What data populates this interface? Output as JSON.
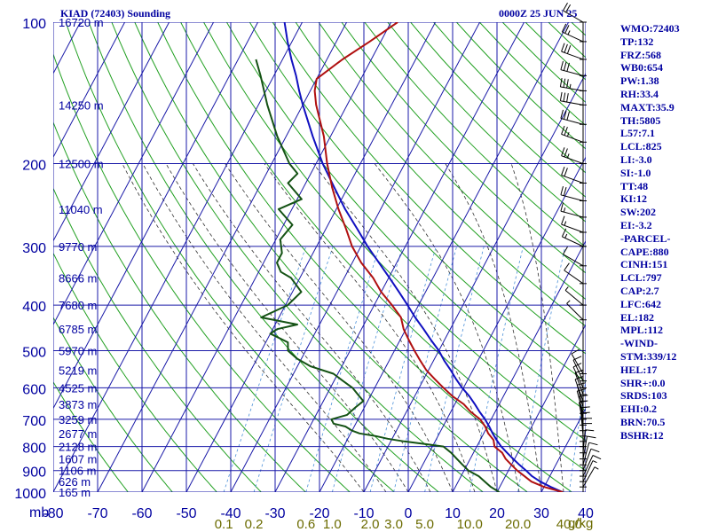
{
  "header": {
    "station": "KIAD (72403) Sounding",
    "datetime": "0000Z 25 JUN 25"
  },
  "indices": [
    "WMO:72403",
    "TP:132",
    "FRZ:568",
    "WB0:654",
    "PW:1.38",
    "RH:33.4",
    "MAXT:35.9",
    "TH:5805",
    "L57:7.1",
    "LCL:825",
    "LI:-3.0",
    "SI:-1.0",
    "TT:48",
    "KI:12",
    "SW:202",
    "EI:-3.2",
    "-PARCEL-",
    "CAPE:880",
    "CINH:151",
    "LCL:797",
    "CAP:2.7",
    "LFC:642",
    "EL:182",
    "MPL:112",
    "-WIND-",
    "STM:339/12",
    "HEL:17",
    "SHR+:0.0",
    "SRDS:103",
    "EHI:0.2",
    "BRN:70.5",
    "BSHR:12"
  ],
  "axis_caption": "mb",
  "mixing_unit": "g/kg",
  "colors": {
    "isobar": "#1a1aa8",
    "isotherm": "#1a1aa8",
    "dry_adiabat": "#22a022",
    "moist_adiabat": "#303030",
    "mixing_ratio": "#4a90d9",
    "temperature": "#b01010",
    "dewpoint": "#145214",
    "parcel": "#1010c0",
    "label": "#0000a0",
    "mixing_label": "#6b6b00"
  },
  "chart_data": {
    "type": "skew-t",
    "pressure_levels": [
      100,
      200,
      300,
      400,
      500,
      600,
      700,
      800,
      900,
      1000
    ],
    "height_labels": [
      {
        "p": 100,
        "label": "16720 m"
      },
      {
        "p": 150,
        "label": "14250 m"
      },
      {
        "p": 200,
        "label": "12500 m"
      },
      {
        "p": 250,
        "label": "11040 m"
      },
      {
        "p": 300,
        "label": "9770 m"
      },
      {
        "p": 350,
        "label": "8666 m"
      },
      {
        "p": 400,
        "label": "7680 m"
      },
      {
        "p": 450,
        "label": "6785 m"
      },
      {
        "p": 500,
        "label": "5970 m"
      },
      {
        "p": 550,
        "label": "5219 m"
      },
      {
        "p": 600,
        "label": "4525 m"
      },
      {
        "p": 650,
        "label": "3873 m"
      },
      {
        "p": 700,
        "label": "3259 m"
      },
      {
        "p": 750,
        "label": "2677 m"
      },
      {
        "p": 800,
        "label": "2128 m"
      },
      {
        "p": 850,
        "label": "1607 m"
      },
      {
        "p": 900,
        "label": "1106 m"
      },
      {
        "p": 950,
        "label": "626 m"
      },
      {
        "p": 1000,
        "label": "165 m"
      }
    ],
    "temperature_ticks": [
      -80,
      -70,
      -60,
      -50,
      -40,
      -30,
      -20,
      -10,
      0,
      10,
      20,
      30,
      40
    ],
    "mixing_ratio_ticks": [
      "0.1",
      "0.2",
      "0.6",
      "1.0",
      "2.0",
      "3.0",
      "5.0",
      "10.0",
      "20.0",
      "40.0"
    ],
    "xlim": [
      -80,
      40
    ],
    "ylim": [
      1000,
      100
    ],
    "temperature_profile": [
      [
        1000,
        34.8
      ],
      [
        975,
        30
      ],
      [
        950,
        26.5
      ],
      [
        925,
        24.3
      ],
      [
        900,
        22
      ],
      [
        875,
        20
      ],
      [
        850,
        18
      ],
      [
        825,
        16.5
      ],
      [
        800,
        14
      ],
      [
        775,
        13
      ],
      [
        750,
        11
      ],
      [
        725,
        9.5
      ],
      [
        700,
        7.5
      ],
      [
        675,
        4.5
      ],
      [
        650,
        2
      ],
      [
        625,
        -1.5
      ],
      [
        600,
        -4.5
      ],
      [
        575,
        -7.5
      ],
      [
        550,
        -10.5
      ],
      [
        525,
        -13
      ],
      [
        500,
        -15.5
      ],
      [
        475,
        -18
      ],
      [
        450,
        -20.5
      ],
      [
        425,
        -22.5
      ],
      [
        400,
        -26
      ],
      [
        375,
        -30
      ],
      [
        350,
        -33.5
      ],
      [
        325,
        -38
      ],
      [
        300,
        -42
      ],
      [
        275,
        -45.5
      ],
      [
        250,
        -49.5
      ],
      [
        225,
        -53.5
      ],
      [
        200,
        -57.5
      ],
      [
        175,
        -61.5
      ],
      [
        150,
        -67
      ],
      [
        140,
        -69
      ],
      [
        132,
        -70
      ],
      [
        120,
        -66.5
      ],
      [
        110,
        -62.5
      ],
      [
        100,
        -58.5
      ]
    ],
    "dewpoint_profile": [
      [
        1000,
        20.5
      ],
      [
        975,
        18
      ],
      [
        950,
        16
      ],
      [
        925,
        14
      ],
      [
        900,
        11
      ],
      [
        875,
        9
      ],
      [
        850,
        7
      ],
      [
        825,
        5
      ],
      [
        800,
        2.5
      ],
      [
        790,
        -2
      ],
      [
        780,
        -7
      ],
      [
        770,
        -11
      ],
      [
        760,
        -14
      ],
      [
        750,
        -18
      ],
      [
        740,
        -20
      ],
      [
        725,
        -22
      ],
      [
        715,
        -25
      ],
      [
        700,
        -26
      ],
      [
        685,
        -23
      ],
      [
        660,
        -22
      ],
      [
        640,
        -21
      ],
      [
        620,
        -23
      ],
      [
        600,
        -25
      ],
      [
        580,
        -28
      ],
      [
        560,
        -31
      ],
      [
        540,
        -37
      ],
      [
        520,
        -41
      ],
      [
        500,
        -44
      ],
      [
        480,
        -45
      ],
      [
        460,
        -50
      ],
      [
        450,
        -49
      ],
      [
        440,
        -45
      ],
      [
        425,
        -54
      ],
      [
        400,
        -49.5
      ],
      [
        375,
        -48
      ],
      [
        350,
        -52
      ],
      [
        340,
        -55
      ],
      [
        325,
        -57
      ],
      [
        310,
        -57
      ],
      [
        290,
        -59
      ],
      [
        270,
        -58
      ],
      [
        250,
        -63
      ],
      [
        238,
        -59
      ],
      [
        220,
        -64
      ],
      [
        210,
        -63
      ],
      [
        200,
        -66
      ],
      [
        175,
        -72
      ],
      [
        150,
        -78
      ],
      [
        130,
        -83
      ],
      [
        120,
        -86
      ]
    ],
    "parcel_profile": [
      [
        1000,
        34.8
      ],
      [
        975,
        31.5
      ],
      [
        950,
        28.5
      ],
      [
        925,
        26
      ],
      [
        900,
        24
      ],
      [
        875,
        21.8
      ],
      [
        850,
        19.7
      ],
      [
        825,
        17.6
      ],
      [
        800,
        15.5
      ],
      [
        775,
        13.7
      ],
      [
        750,
        12
      ],
      [
        725,
        10.4
      ],
      [
        700,
        8.6
      ],
      [
        675,
        6.5
      ],
      [
        650,
        4.5
      ],
      [
        625,
        2.3
      ],
      [
        600,
        -0.3
      ],
      [
        575,
        -2.7
      ],
      [
        550,
        -5
      ],
      [
        525,
        -7.6
      ],
      [
        500,
        -10
      ],
      [
        475,
        -13
      ],
      [
        450,
        -16
      ],
      [
        425,
        -19.3
      ],
      [
        400,
        -22.5
      ],
      [
        375,
        -26
      ],
      [
        350,
        -29.8
      ],
      [
        325,
        -34
      ],
      [
        300,
        -38.5
      ],
      [
        275,
        -43
      ],
      [
        250,
        -48
      ],
      [
        225,
        -53
      ],
      [
        200,
        -58.5
      ],
      [
        175,
        -64
      ],
      [
        150,
        -70
      ],
      [
        140,
        -72.5
      ],
      [
        130,
        -75
      ],
      [
        120,
        -78
      ],
      [
        110,
        -81
      ],
      [
        100,
        -84
      ]
    ],
    "wind_barbs": [
      {
        "p": 100,
        "dir": 300,
        "speed": 20
      },
      {
        "p": 110,
        "dir": 295,
        "speed": 25
      },
      {
        "p": 120,
        "dir": 290,
        "speed": 30
      },
      {
        "p": 130,
        "dir": 285,
        "speed": 30
      },
      {
        "p": 140,
        "dir": 280,
        "speed": 35
      },
      {
        "p": 150,
        "dir": 280,
        "speed": 30
      },
      {
        "p": 165,
        "dir": 285,
        "speed": 30
      },
      {
        "p": 180,
        "dir": 290,
        "speed": 25
      },
      {
        "p": 200,
        "dir": 290,
        "speed": 25
      },
      {
        "p": 220,
        "dir": 290,
        "speed": 20
      },
      {
        "p": 240,
        "dir": 285,
        "speed": 20
      },
      {
        "p": 260,
        "dir": 285,
        "speed": 15
      },
      {
        "p": 280,
        "dir": 290,
        "speed": 15
      },
      {
        "p": 300,
        "dir": 295,
        "speed": 15
      },
      {
        "p": 330,
        "dir": 300,
        "speed": 10
      },
      {
        "p": 360,
        "dir": 305,
        "speed": 10
      },
      {
        "p": 400,
        "dir": 310,
        "speed": 5
      },
      {
        "p": 430,
        "dir": 315,
        "speed": 5
      },
      {
        "p": 560,
        "dir": 330,
        "speed": 10
      },
      {
        "p": 580,
        "dir": 335,
        "speed": 10
      },
      {
        "p": 600,
        "dir": 335,
        "speed": 10
      },
      {
        "p": 620,
        "dir": 340,
        "speed": 10
      },
      {
        "p": 640,
        "dir": 340,
        "speed": 10
      },
      {
        "p": 660,
        "dir": 345,
        "speed": 10
      },
      {
        "p": 680,
        "dir": 345,
        "speed": 10
      },
      {
        "p": 700,
        "dir": 350,
        "speed": 10
      },
      {
        "p": 720,
        "dir": 350,
        "speed": 10
      },
      {
        "p": 740,
        "dir": 355,
        "speed": 10
      },
      {
        "p": 760,
        "dir": 355,
        "speed": 10
      },
      {
        "p": 780,
        "dir": 0,
        "speed": 10
      },
      {
        "p": 800,
        "dir": 0,
        "speed": 10
      },
      {
        "p": 825,
        "dir": 5,
        "speed": 10
      },
      {
        "p": 850,
        "dir": 10,
        "speed": 10
      },
      {
        "p": 875,
        "dir": 15,
        "speed": 10
      },
      {
        "p": 900,
        "dir": 20,
        "speed": 10
      },
      {
        "p": 925,
        "dir": 25,
        "speed": 10
      },
      {
        "p": 950,
        "dir": 25,
        "speed": 5
      },
      {
        "p": 975,
        "dir": 30,
        "speed": 5
      }
    ]
  }
}
